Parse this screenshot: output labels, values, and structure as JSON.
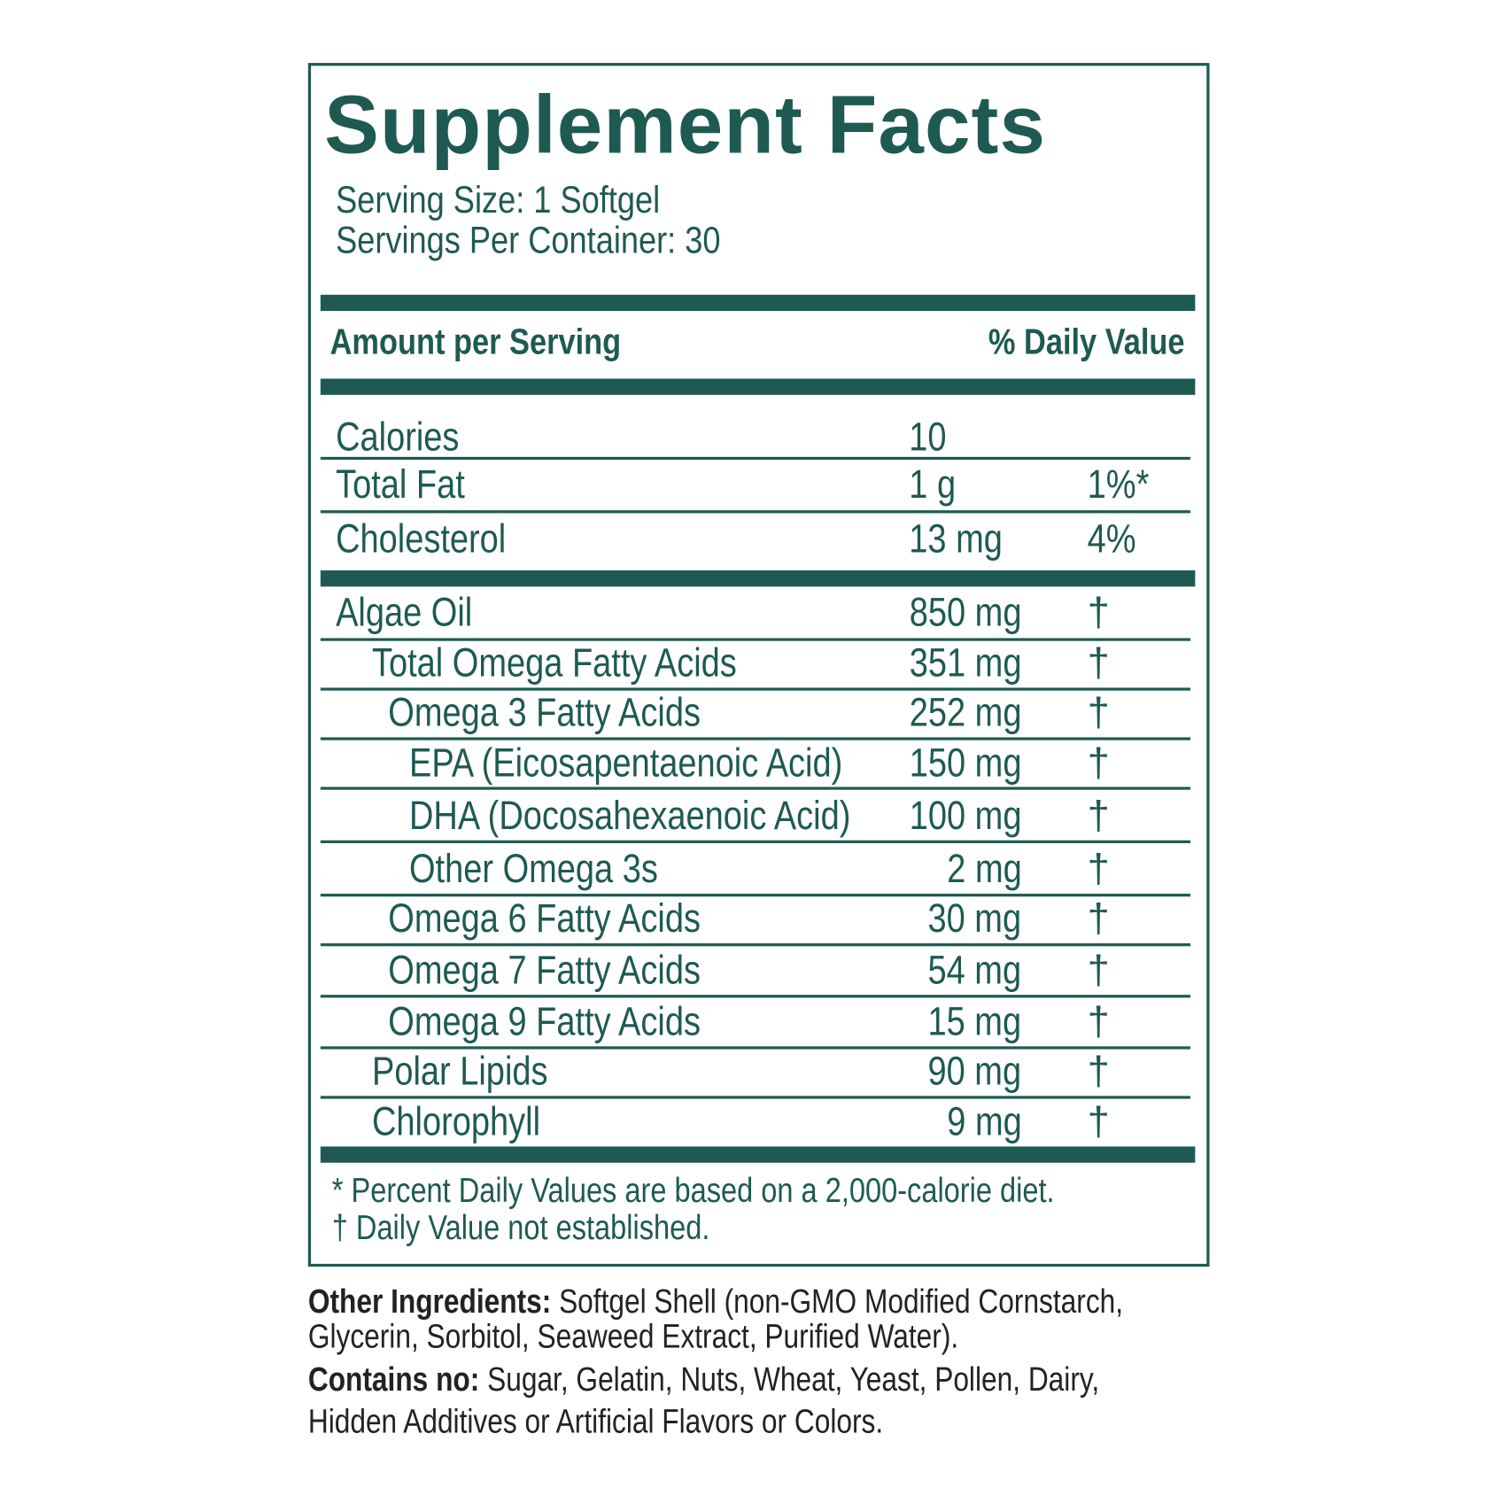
{
  "title": "Supplement Facts",
  "serving_size": "Serving Size: 1 Softgel",
  "servings_per_container": "Servings Per Container: 30",
  "header": {
    "amount": "Amount per Serving",
    "daily_value": "% Daily Value"
  },
  "basic_rows": [
    {
      "name": "Calories",
      "amount": "10",
      "dv": ""
    },
    {
      "name": "Total Fat",
      "amount": "1 g",
      "dv": "1%*"
    },
    {
      "name": "Cholesterol",
      "amount": "13 mg",
      "dv": "4%"
    }
  ],
  "rows": [
    {
      "name": "Algae Oil",
      "amount": "850 mg",
      "dv": "†",
      "indent": 0
    },
    {
      "name": "Total Omega Fatty Acids",
      "amount": "351 mg",
      "dv": "†",
      "indent": 1
    },
    {
      "name": "Omega 3 Fatty Acids",
      "amount": "252 mg",
      "dv": "†",
      "indent": 2
    },
    {
      "name": "EPA (Eicosapentaenoic Acid)",
      "amount": "150 mg",
      "dv": "†",
      "indent": 3
    },
    {
      "name": "DHA (Docosahexaenoic Acid)",
      "amount": "100 mg",
      "dv": "†",
      "indent": 3
    },
    {
      "name": "Other Omega 3s",
      "amount": "2 mg",
      "dv": "†",
      "indent": 3
    },
    {
      "name": "Omega 6 Fatty Acids",
      "amount": "30 mg",
      "dv": "†",
      "indent": 2
    },
    {
      "name": "Omega 7 Fatty Acids",
      "amount": "54 mg",
      "dv": "†",
      "indent": 2
    },
    {
      "name": "Omega 9 Fatty Acids",
      "amount": "15 mg",
      "dv": "†",
      "indent": 2
    },
    {
      "name": "Polar Lipids",
      "amount": "90 mg",
      "dv": "†",
      "indent": 1
    },
    {
      "name": "Chlorophyll",
      "amount": "9 mg",
      "dv": "†",
      "indent": 1
    }
  ],
  "footnotes": [
    "*  Percent Daily Values are based on a 2,000-calorie diet.",
    "† Daily Value not established."
  ],
  "other_ingredients": {
    "label": "Other Ingredients:",
    "line1": " Softgel Shell (non-GMO Modified Cornstarch,",
    "line2": "Glycerin, Sorbitol, Seaweed Extract, Purified Water)."
  },
  "contains_no": {
    "label": "Contains no:",
    "line1": " Sugar, Gelatin, Nuts, Wheat, Yeast, Pollen, Dairy,",
    "line2": "Hidden Additives or Artificial Flavors or Colors."
  },
  "colors": {
    "brand_green": "#1e5a52",
    "text_dark": "#222222"
  }
}
